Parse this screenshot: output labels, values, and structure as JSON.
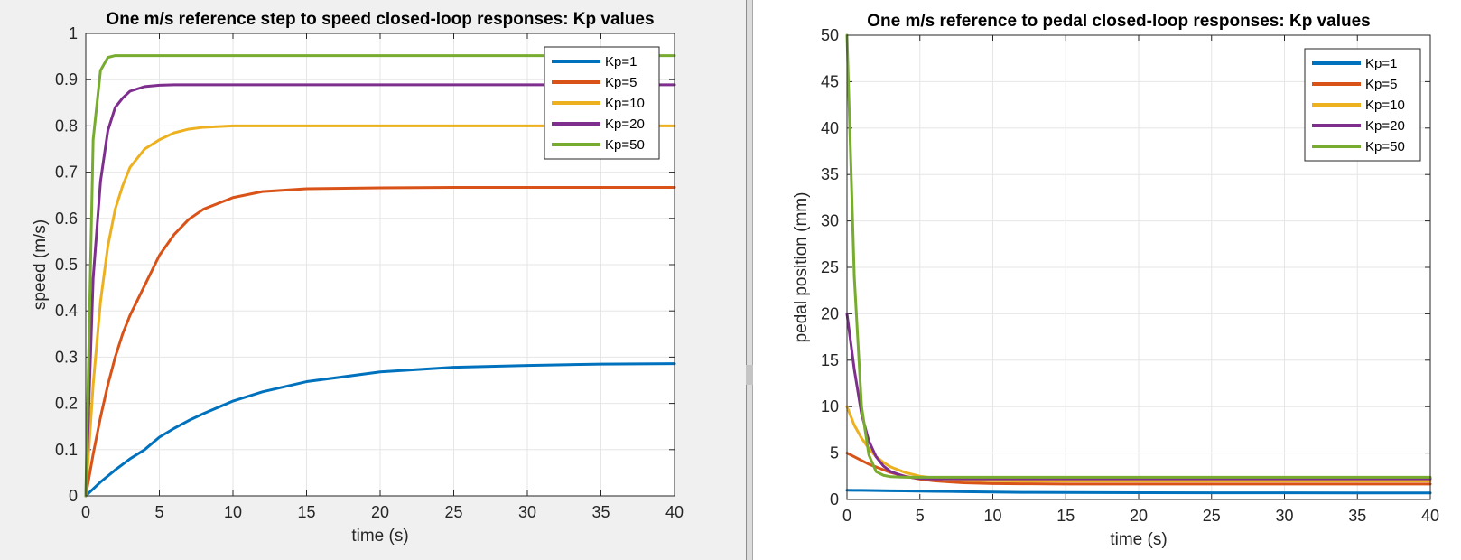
{
  "chart_data": [
    {
      "type": "line",
      "title": "One m/s reference step to speed closed-loop responses: Kp values",
      "xlabel": "time (s)",
      "ylabel": "speed (m/s)",
      "xlim": [
        0,
        40
      ],
      "ylim": [
        0,
        1
      ],
      "xticks": [
        0,
        5,
        10,
        15,
        20,
        25,
        30,
        35,
        40
      ],
      "yticks": [
        0,
        0.1,
        0.2,
        0.3,
        0.4,
        0.5,
        0.6,
        0.7,
        0.8,
        0.9,
        1
      ],
      "grid": true,
      "legend_position": "top-right",
      "x": [
        0,
        0.5,
        1,
        1.5,
        2,
        2.5,
        3,
        4,
        5,
        6,
        7,
        8,
        10,
        12,
        15,
        20,
        25,
        30,
        35,
        40
      ],
      "series": [
        {
          "name": "Kp=1",
          "color": "#0072BD",
          "values": [
            0,
            0.015,
            0.03,
            0.043,
            0.056,
            0.068,
            0.08,
            0.1,
            0.127,
            0.146,
            0.163,
            0.178,
            0.205,
            0.225,
            0.247,
            0.268,
            0.278,
            0.282,
            0.285,
            0.286
          ]
        },
        {
          "name": "Kp=5",
          "color": "#D95319",
          "values": [
            0,
            0.09,
            0.17,
            0.24,
            0.3,
            0.35,
            0.39,
            0.455,
            0.52,
            0.565,
            0.598,
            0.62,
            0.645,
            0.658,
            0.664,
            0.666,
            0.667,
            0.667,
            0.667,
            0.667
          ]
        },
        {
          "name": "Kp=10",
          "color": "#EDB120",
          "values": [
            0,
            0.24,
            0.42,
            0.54,
            0.62,
            0.67,
            0.71,
            0.75,
            0.77,
            0.785,
            0.793,
            0.797,
            0.8,
            0.8,
            0.8,
            0.8,
            0.8,
            0.8,
            0.8,
            0.8
          ]
        },
        {
          "name": "Kp=20",
          "color": "#7E2F8E",
          "values": [
            0,
            0.47,
            0.68,
            0.79,
            0.84,
            0.86,
            0.875,
            0.885,
            0.888,
            0.889,
            0.889,
            0.889,
            0.889,
            0.889,
            0.889,
            0.889,
            0.889,
            0.889,
            0.889,
            0.889
          ]
        },
        {
          "name": "Kp=50",
          "color": "#77AC30",
          "values": [
            0,
            0.77,
            0.92,
            0.948,
            0.952,
            0.952,
            0.952,
            0.952,
            0.952,
            0.952,
            0.952,
            0.952,
            0.952,
            0.952,
            0.952,
            0.952,
            0.952,
            0.952,
            0.952,
            0.952
          ]
        }
      ]
    },
    {
      "type": "line",
      "title": "One m/s reference to pedal closed-loop responses: Kp values",
      "xlabel": "time (s)",
      "ylabel": "pedal position (mm)",
      "xlim": [
        0,
        40
      ],
      "ylim": [
        0,
        50
      ],
      "xticks": [
        0,
        5,
        10,
        15,
        20,
        25,
        30,
        35,
        40
      ],
      "yticks": [
        0,
        5,
        10,
        15,
        20,
        25,
        30,
        35,
        40,
        45,
        50
      ],
      "grid": true,
      "legend_position": "top-right",
      "x": [
        0,
        0.5,
        1,
        1.5,
        2,
        2.5,
        3,
        4,
        5,
        6,
        7,
        8,
        10,
        12,
        15,
        20,
        25,
        30,
        35,
        40
      ],
      "series": [
        {
          "name": "Kp=1",
          "color": "#0072BD",
          "values": [
            1.0,
            0.99,
            0.98,
            0.97,
            0.96,
            0.95,
            0.94,
            0.92,
            0.9,
            0.88,
            0.86,
            0.84,
            0.8,
            0.77,
            0.75,
            0.73,
            0.72,
            0.72,
            0.71,
            0.71
          ]
        },
        {
          "name": "Kp=5",
          "color": "#D95319",
          "values": [
            5.0,
            4.6,
            4.2,
            3.8,
            3.5,
            3.2,
            2.9,
            2.5,
            2.2,
            2.0,
            1.9,
            1.8,
            1.72,
            1.69,
            1.67,
            1.67,
            1.67,
            1.67,
            1.67,
            1.67
          ]
        },
        {
          "name": "Kp=10",
          "color": "#EDB120",
          "values": [
            10.0,
            8.0,
            6.6,
            5.5,
            4.6,
            4.0,
            3.5,
            2.9,
            2.5,
            2.3,
            2.15,
            2.07,
            2.02,
            2.0,
            2.0,
            2.0,
            2.0,
            2.0,
            2.0,
            2.0
          ]
        },
        {
          "name": "Kp=20",
          "color": "#7E2F8E",
          "values": [
            20.0,
            14.0,
            9.2,
            6.3,
            4.6,
            3.6,
            3.0,
            2.45,
            2.27,
            2.23,
            2.22,
            2.22,
            2.22,
            2.22,
            2.22,
            2.22,
            2.22,
            2.22,
            2.22,
            2.22
          ]
        },
        {
          "name": "Kp=50",
          "color": "#77AC30",
          "values": [
            50.0,
            24.0,
            10.0,
            4.8,
            3.0,
            2.6,
            2.45,
            2.4,
            2.4,
            2.4,
            2.4,
            2.4,
            2.4,
            2.4,
            2.4,
            2.4,
            2.4,
            2.4,
            2.4,
            2.4
          ]
        }
      ]
    }
  ]
}
